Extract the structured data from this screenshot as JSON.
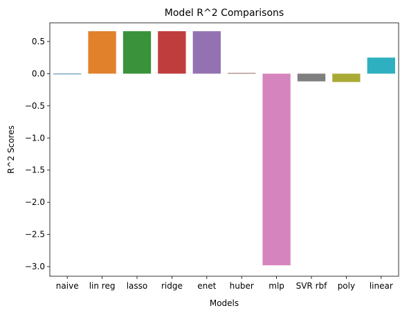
{
  "chart_data": {
    "type": "bar",
    "title": "Model R^2 Comparisons",
    "xlabel": "Models",
    "ylabel": "R^2 Scores",
    "ylim": [
      -3.15,
      0.79
    ],
    "yticks": [
      0.5,
      0.0,
      -0.5,
      -1.0,
      -1.5,
      -2.0,
      -2.5,
      -3.0
    ],
    "ytick_labels": [
      "0.5",
      "0.0",
      "−0.5",
      "−1.0",
      "−1.5",
      "−2.0",
      "−2.5",
      "−3.0"
    ],
    "categories": [
      "naive",
      "lin reg",
      "lasso",
      "ridge",
      "enet",
      "huber",
      "mlp",
      "SVR rbf",
      "poly",
      "linear"
    ],
    "values": [
      -0.01,
      0.66,
      0.66,
      0.66,
      0.66,
      0.01,
      -2.98,
      -0.12,
      -0.13,
      0.25
    ],
    "colors": [
      "#3274a1",
      "#e1812c",
      "#3a923a",
      "#c03d3e",
      "#9372b2",
      "#845b53",
      "#d684bd",
      "#7f7f7f",
      "#a9aa35",
      "#2eb0c0"
    ],
    "grid": false,
    "legend": "none"
  }
}
